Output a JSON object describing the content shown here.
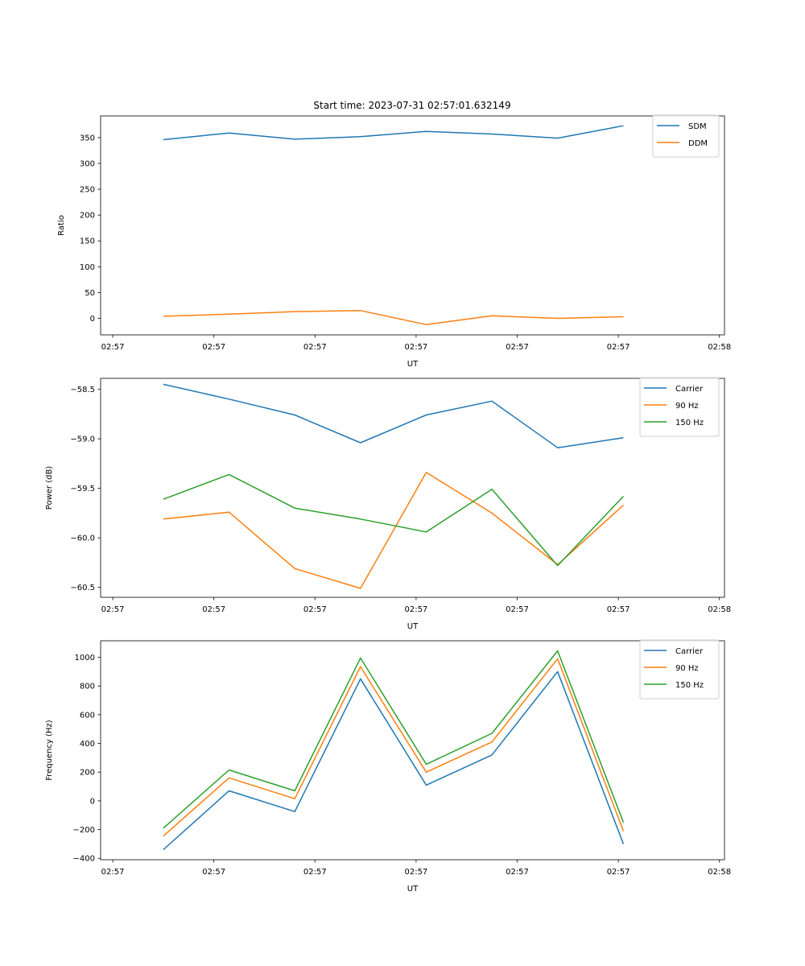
{
  "figure_title": "Start time: 2023-07-31 02:57:01.632149",
  "colors": {
    "c0": "#1f77b4",
    "c1": "#ff7f0e",
    "c2": "#2ca02c"
  },
  "chart_data": [
    {
      "type": "line",
      "title": "Start time: 2023-07-31 02:57:01.632149",
      "xlabel": "UT",
      "ylabel": "Ratio",
      "xticks": [
        "02:57",
        "02:57",
        "02:57",
        "02:57",
        "02:57",
        "02:57",
        "02:58"
      ],
      "xtick_pos": [
        0,
        1,
        2,
        3,
        4,
        5,
        6
      ],
      "xlim": [
        -0.12,
        6.05
      ],
      "x": [
        0.5,
        1.15,
        1.8,
        2.45,
        3.1,
        3.75,
        4.4,
        5.05
      ],
      "ylim": [
        -32,
        392
      ],
      "yticks": [
        0,
        50,
        100,
        150,
        200,
        250,
        300,
        350
      ],
      "ytick_labels": [
        "0",
        "50",
        "100",
        "150",
        "200",
        "250",
        "300",
        "350"
      ],
      "legend_position": "top-right",
      "series": [
        {
          "name": "SDM",
          "color": "#1f77b4",
          "values": [
            346,
            359,
            347,
            352,
            362,
            357,
            349,
            373
          ]
        },
        {
          "name": "DDM",
          "color": "#ff7f0e",
          "values": [
            4,
            8,
            13,
            15,
            -12,
            5,
            0,
            3
          ]
        }
      ]
    },
    {
      "type": "line",
      "xlabel": "UT",
      "ylabel": "Power (dB)",
      "xticks": [
        "02:57",
        "02:57",
        "02:57",
        "02:57",
        "02:57",
        "02:57",
        "02:58"
      ],
      "xtick_pos": [
        0,
        1,
        2,
        3,
        4,
        5,
        6
      ],
      "xlim": [
        -0.12,
        6.05
      ],
      "x": [
        0.5,
        1.15,
        1.8,
        2.45,
        3.1,
        3.75,
        4.4,
        5.05
      ],
      "ylim": [
        -60.6,
        -58.39
      ],
      "yticks": [
        -60.5,
        -60.0,
        -59.5,
        -59.0,
        -58.5
      ],
      "ytick_labels": [
        "−60.5",
        "−60.0",
        "−59.5",
        "−59.0",
        "−58.5"
      ],
      "legend_position": "top-right",
      "series": [
        {
          "name": "Carrier",
          "color": "#1f77b4",
          "values": [
            -58.45,
            -58.6,
            -58.76,
            -59.04,
            -58.76,
            -58.62,
            -59.09,
            -58.99
          ]
        },
        {
          "name": "90 Hz",
          "color": "#ff7f0e",
          "values": [
            -59.81,
            -59.74,
            -60.31,
            -60.51,
            -59.34,
            -59.75,
            -60.27,
            -59.67
          ]
        },
        {
          "name": "150 Hz",
          "color": "#2ca02c",
          "values": [
            -59.61,
            -59.36,
            -59.7,
            -59.81,
            -59.94,
            -59.51,
            -60.28,
            -59.58
          ]
        }
      ]
    },
    {
      "type": "line",
      "xlabel": "UT",
      "ylabel": "Frequency (Hz)",
      "xticks": [
        "02:57",
        "02:57",
        "02:57",
        "02:57",
        "02:57",
        "02:57",
        "02:58"
      ],
      "xtick_pos": [
        0,
        1,
        2,
        3,
        4,
        5,
        6
      ],
      "xlim": [
        -0.12,
        6.05
      ],
      "x": [
        0.5,
        1.15,
        1.8,
        2.45,
        3.1,
        3.75,
        4.4,
        5.05
      ],
      "ylim": [
        -410,
        1115
      ],
      "yticks": [
        -400,
        -200,
        0,
        200,
        400,
        600,
        800,
        1000
      ],
      "ytick_labels": [
        "−400",
        "−200",
        "0",
        "200",
        "400",
        "600",
        "800",
        "1000"
      ],
      "legend_position": "top-right",
      "series": [
        {
          "name": "Carrier",
          "color": "#1f77b4",
          "values": [
            -340,
            70,
            -75,
            850,
            110,
            320,
            900,
            -300
          ]
        },
        {
          "name": "90 Hz",
          "color": "#ff7f0e",
          "values": [
            -245,
            160,
            15,
            935,
            200,
            410,
            990,
            -210
          ]
        },
        {
          "name": "150 Hz",
          "color": "#2ca02c",
          "values": [
            -190,
            215,
            70,
            995,
            255,
            470,
            1045,
            -150
          ]
        }
      ]
    }
  ]
}
